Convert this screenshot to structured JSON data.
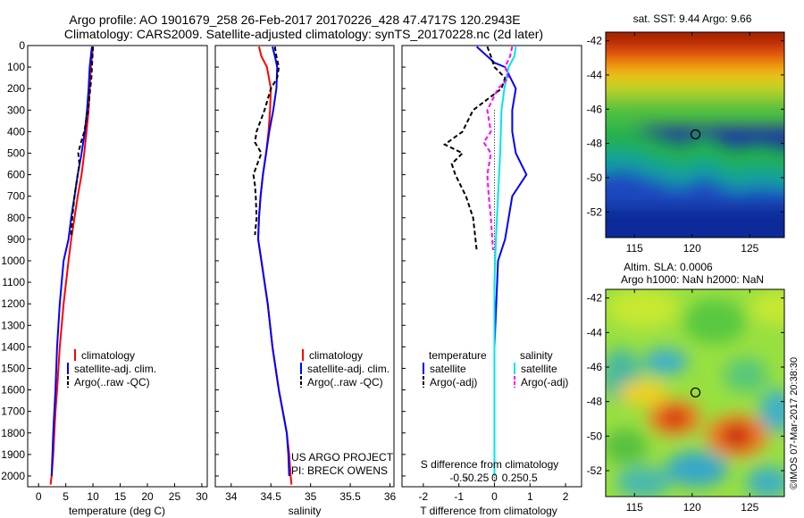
{
  "header": {
    "title_line1": "Argo profile: AO 1901679_258 26-Feb-2017 20170226_428 47.4717S 120.2943E",
    "title_line2": "Climatology: CARS2009. Satellite-adjusted climatology: synTS_20170228.nc (2d later)"
  },
  "colors": {
    "climatology": "#ff0000",
    "satellite": "#0000ff",
    "argo": "#000000",
    "sal_satellite": "#00e5ee",
    "sal_argo": "#ff00ff"
  },
  "depth_axis": {
    "ylim": [
      0,
      2050
    ],
    "ticks": [
      "0",
      "100",
      "200",
      "300",
      "400",
      "500",
      "600",
      "700",
      "800",
      "900",
      "1000",
      "1100",
      "1200",
      "1300",
      "1400",
      "1500",
      "1600",
      "1700",
      "1800",
      "1900",
      "2000"
    ]
  },
  "temperature_panel": {
    "xlabel": "temperature (deg C)",
    "xlim": [
      -2,
      31
    ],
    "xticks": [
      "0",
      "5",
      "10",
      "15",
      "20",
      "25",
      "30"
    ],
    "legend": [
      "climatology",
      "satellite-adj. clim.",
      "Argo(..raw -QC)"
    ]
  },
  "salinity_panel": {
    "xlabel": "salinity",
    "xlim": [
      33.8,
      36.05
    ],
    "xticks": [
      "34",
      "34.5",
      "35",
      "35.5",
      "36"
    ],
    "legend": [
      "climatology",
      "satellite-adj. clim.",
      "Argo(..raw -QC)"
    ],
    "project_line1": "US ARGO PROJECT",
    "project_line2": "PI: BRECK OWENS"
  },
  "difference_panel": {
    "xlabel": "T difference from climatology",
    "xlim": [
      -2.6,
      2.45
    ],
    "xticks": [
      "-2",
      "-1",
      "0",
      "1",
      "2"
    ],
    "s_label": "S difference from climatology",
    "s_ticks": [
      "-0.5",
      "-0.25",
      "0",
      "0.25",
      "0.5"
    ],
    "legend_temperature_title": "temperature",
    "legend_salinity_title": "salinity",
    "legend_temperature_items": [
      "satellite",
      "Argo(-adj)"
    ],
    "legend_salinity_items": [
      "satellite",
      "Argo(-adj)"
    ]
  },
  "sst_map": {
    "title": "sat. SST: 9.44  Argo: 9.66",
    "lat_ticks": [
      "-42",
      "-44",
      "-46",
      "-48",
      "-50",
      "-52"
    ],
    "lon_ticks": [
      "115",
      "120",
      "125"
    ]
  },
  "sla_map": {
    "title_line1": "Altim. SLA: 0.0006",
    "title_line2": "Argo h1000: NaN h2000: NaN",
    "lat_ticks": [
      "-42",
      "-44",
      "-46",
      "-48",
      "-50",
      "-52"
    ],
    "lon_ticks": [
      "115",
      "120",
      "125"
    ]
  },
  "credit": "©IMOS 07-Mar-2017 20:38:30",
  "chart_data": [
    {
      "type": "line",
      "title": "",
      "xlabel": "temperature (deg C)",
      "ylabel": "",
      "xlim": [
        -2,
        31
      ],
      "ylim": [
        0,
        2050
      ],
      "y_reversed": true,
      "series": [
        {
          "name": "climatology",
          "color": "#ff0000",
          "dash": "solid",
          "x": [
            10.0,
            9.8,
            9.6,
            9.4,
            9.2,
            8.8,
            8.4,
            7.9,
            7.2,
            6.6,
            6.0,
            5.5,
            4.6,
            3.9,
            3.4,
            3.1,
            2.9,
            2.7,
            2.55,
            2.4,
            2.3,
            2.2
          ],
          "y": [
            5,
            50,
            100,
            200,
            300,
            400,
            500,
            600,
            700,
            800,
            900,
            1000,
            1200,
            1400,
            1600,
            1700,
            1800,
            1900,
            1950,
            2000,
            2020,
            2040
          ]
        },
        {
          "name": "satellite-adj. clim.",
          "color": "#0000ff",
          "dash": "solid",
          "x": [
            9.8,
            9.6,
            9.4,
            9.2,
            8.9,
            8.5,
            7.9,
            7.2,
            6.6,
            6.0,
            5.5,
            4.6,
            3.9,
            3.4,
            3.1,
            2.9,
            2.7,
            2.55,
            2.4
          ],
          "y": [
            5,
            50,
            100,
            200,
            300,
            400,
            500,
            600,
            700,
            800,
            900,
            1000,
            1200,
            1400,
            1600,
            1700,
            1800,
            1900,
            2000
          ]
        },
        {
          "name": "Argo(..raw -QC)",
          "color": "#000000",
          "dash": "dashed",
          "x": [
            10.0,
            9.9,
            9.8,
            9.7,
            9.5,
            9.1,
            8.4,
            7.8,
            7.3,
            7.5,
            7.2,
            6.9,
            6.6,
            6.2,
            6.0
          ],
          "y": [
            5,
            50,
            100,
            150,
            200,
            300,
            400,
            450,
            500,
            550,
            600,
            650,
            700,
            800,
            880
          ]
        }
      ]
    },
    {
      "type": "line",
      "title": "",
      "xlabel": "salinity",
      "ylabel": "",
      "xlim": [
        33.8,
        36.05
      ],
      "ylim": [
        0,
        2050
      ],
      "y_reversed": true,
      "series": [
        {
          "name": "climatology",
          "color": "#ff0000",
          "dash": "solid",
          "x": [
            34.35,
            34.38,
            34.45,
            34.5,
            34.49,
            34.47,
            34.44,
            34.4,
            34.37,
            34.35,
            34.34,
            34.38,
            34.46,
            34.52,
            34.6,
            34.65,
            34.7,
            34.73,
            34.75,
            34.76
          ],
          "y": [
            5,
            50,
            100,
            200,
            300,
            400,
            500,
            600,
            700,
            800,
            900,
            1000,
            1200,
            1400,
            1600,
            1700,
            1800,
            1900,
            2000,
            2040
          ]
        },
        {
          "name": "satellite-adj. clim.",
          "color": "#0000ff",
          "dash": "solid",
          "x": [
            34.52,
            34.55,
            34.58,
            34.57,
            34.53,
            34.48,
            34.44,
            34.4,
            34.37,
            34.35,
            34.34,
            34.38,
            34.46,
            34.52,
            34.6,
            34.65,
            34.7,
            34.72,
            34.73
          ],
          "y": [
            5,
            50,
            100,
            200,
            300,
            400,
            500,
            600,
            700,
            800,
            900,
            1000,
            1200,
            1400,
            1600,
            1700,
            1800,
            1900,
            2000
          ]
        },
        {
          "name": "Argo(..raw -QC)",
          "color": "#000000",
          "dash": "dashed",
          "x": [
            34.55,
            34.57,
            34.6,
            34.58,
            34.5,
            34.42,
            34.32,
            34.3,
            34.38,
            34.33,
            34.28,
            34.3,
            34.31,
            34.32,
            34.3
          ],
          "y": [
            5,
            50,
            100,
            150,
            200,
            300,
            400,
            450,
            500,
            550,
            600,
            650,
            700,
            800,
            880
          ]
        }
      ]
    },
    {
      "type": "line",
      "title": "",
      "xlabel": "T difference from climatology",
      "ylabel": "",
      "xlim": [
        -2.6,
        2.45
      ],
      "ylim": [
        0,
        2050
      ],
      "y_reversed": true,
      "series": [
        {
          "name": "temperature satellite",
          "color": "#0000ff",
          "dash": "solid",
          "axis": "T",
          "x": [
            -0.5,
            -0.2,
            0.0,
            0.3,
            0.6,
            0.5,
            0.5,
            0.6,
            0.9,
            0.5,
            0.3,
            0.1,
            0.0,
            0.0,
            0.0
          ],
          "y": [
            5,
            50,
            80,
            100,
            200,
            300,
            400,
            500,
            600,
            700,
            900,
            1000,
            1400,
            1800,
            2000
          ]
        },
        {
          "name": "temperature Argo(-adj)",
          "color": "#000000",
          "dash": "dashed",
          "axis": "T",
          "x": [
            -0.2,
            -0.1,
            0.0,
            0.3,
            0.2,
            -0.6,
            -0.9,
            -1.4,
            -0.9,
            -1.2,
            -1.1,
            -0.8,
            -0.6,
            -0.5
          ],
          "y": [
            5,
            50,
            100,
            150,
            200,
            300,
            400,
            460,
            500,
            550,
            600,
            700,
            800,
            950
          ]
        },
        {
          "name": "salinity satellite",
          "color": "#00e5ee",
          "dash": "solid",
          "axis": "S",
          "x": [
            0.3,
            0.28,
            0.2,
            0.14,
            0.1,
            0.08,
            0.05,
            0.02,
            0.0,
            0.0,
            0.0
          ],
          "y": [
            5,
            50,
            100,
            200,
            300,
            500,
            700,
            900,
            1100,
            1500,
            2000
          ]
        },
        {
          "name": "salinity Argo(-adj)",
          "color": "#ff00ff",
          "dash": "dashed",
          "axis": "S",
          "x": [
            0.25,
            0.22,
            0.15,
            0.2,
            0.05,
            -0.1,
            -0.05,
            -0.15,
            -0.05,
            -0.1,
            -0.08,
            -0.05,
            -0.02
          ],
          "y": [
            5,
            50,
            100,
            150,
            200,
            300,
            400,
            450,
            500,
            600,
            700,
            800,
            950
          ]
        }
      ]
    },
    {
      "type": "heatmap",
      "title": "sat. SST: 9.44  Argo: 9.66",
      "xlabel": "",
      "ylabel": "",
      "xlim": [
        112.5,
        128
      ],
      "ylim": [
        -53.5,
        -41.5
      ],
      "marker": {
        "lon": 120.29,
        "lat": -47.47
      }
    },
    {
      "type": "heatmap",
      "title": "Altim. SLA: 0.0006",
      "xlabel": "",
      "ylabel": "",
      "xlim": [
        112.5,
        128
      ],
      "ylim": [
        -53.5,
        -41.5
      ],
      "marker": {
        "lon": 120.29,
        "lat": -47.47
      }
    }
  ]
}
